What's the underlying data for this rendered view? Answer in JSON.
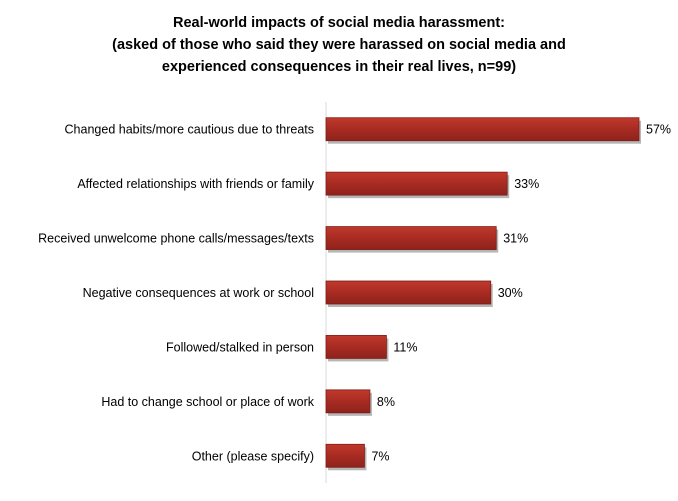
{
  "chart_data": {
    "type": "bar",
    "orientation": "horizontal",
    "title": [
      "Real-world impacts of social media harassment:",
      "(asked of those who said they were harassed on social media and",
      "experienced consequences in their real lives, n=99)"
    ],
    "categories": [
      "Changed habits/more cautious due to threats",
      "Affected relationships with friends or family",
      "Received unwelcome phone calls/messages/texts",
      "Negative consequences at work or school",
      "Followed/stalked in person",
      "Had to change school or place of work",
      "Other (please specify)"
    ],
    "values": [
      57,
      33,
      31,
      30,
      11,
      8,
      7
    ],
    "value_labels": [
      "57%",
      "33%",
      "31%",
      "30%",
      "11%",
      "8%",
      "7%"
    ],
    "xlim": [
      0,
      57
    ],
    "grid": false,
    "legend": "none",
    "colors": {
      "bar_fill": "#a52a22",
      "bar_fill_light": "#c0392b",
      "bar_shadow": "#7a7a7a",
      "axis": "#d9d9d9"
    }
  }
}
